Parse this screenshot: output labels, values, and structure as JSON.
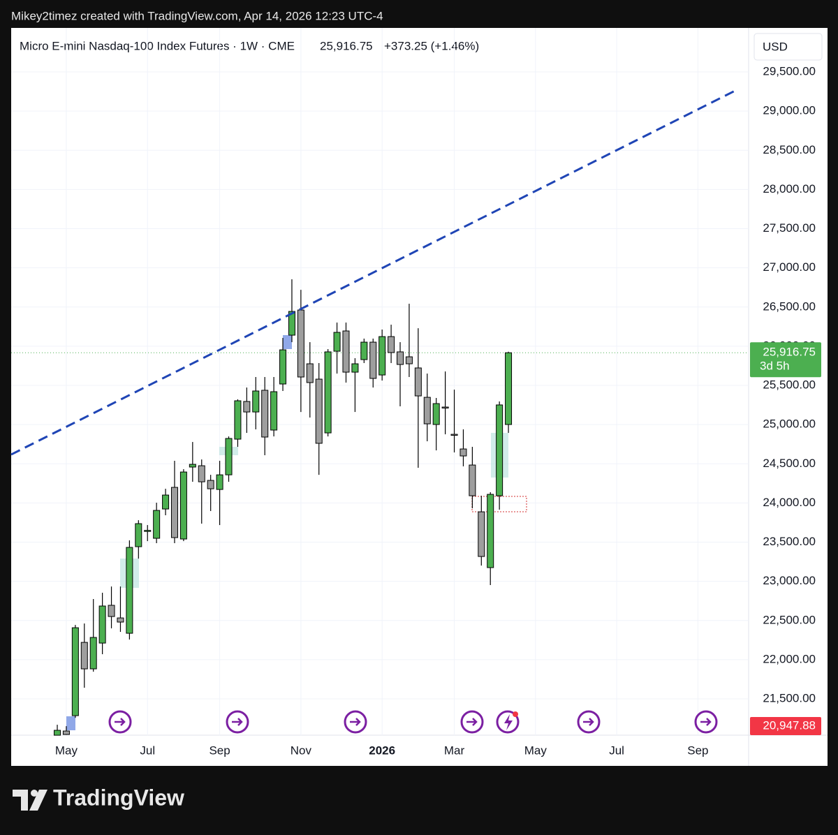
{
  "header": {
    "credit": "Mikey2timez created with TradingView.com, Apr 14, 2026 12:23 UTC-4",
    "brand": "TradingView"
  },
  "chart_data": {
    "type": "candlestick",
    "title": "Micro E-mini Nasdaq-100 Index Futures · 1W · CME",
    "price_text": "25,916.75",
    "change_text": "+373.25 (+1.46%)",
    "currency": "USD",
    "x": [
      0,
      1,
      2,
      3,
      4,
      5,
      6,
      7,
      8,
      9,
      10,
      11,
      12,
      13,
      14,
      15,
      16,
      17,
      18,
      19,
      20,
      21,
      22,
      23,
      24,
      25,
      26,
      27,
      28,
      29,
      30,
      31,
      32,
      33,
      34,
      35,
      36,
      37,
      38,
      39,
      40,
      41,
      42,
      43,
      44,
      45,
      46,
      47,
      48,
      49,
      50
    ],
    "open": [
      21036,
      21090,
      21286,
      22221,
      21883,
      22212,
      22694,
      22533,
      22337,
      23442,
      23647,
      23549,
      23923,
      24199,
      23540,
      24458,
      24475,
      24288,
      24172,
      24359,
      24814,
      25295,
      25161,
      25438,
      24930,
      25518,
      26141,
      26462,
      25776,
      25580,
      24894,
      25936,
      26195,
      25669,
      25829,
      26052,
      25633,
      26123,
      25928,
      25865,
      25723,
      25348,
      25001,
      25224,
      24876,
      24689,
      24484,
      23887,
      23175,
      24092,
      25001
    ],
    "high": [
      21170,
      21152,
      22444,
      22462,
      22774,
      22854,
      22934,
      22934,
      23522,
      23780,
      23718,
      24003,
      24181,
      24538,
      24431,
      24778,
      24555,
      24359,
      24538,
      24849,
      25322,
      25473,
      25607,
      25607,
      25607,
      26106,
      26854,
      26720,
      26052,
      25785,
      25963,
      26302,
      26302,
      25847,
      26097,
      26097,
      26213,
      26275,
      26052,
      26542,
      26230,
      25651,
      25340,
      25678,
      25446,
      24939,
      24716,
      24092,
      24137,
      25295,
      25930
    ],
    "low": [
      21036,
      21040,
      21259,
      21642,
      21847,
      22070,
      22400,
      22355,
      22257,
      23290,
      23513,
      23487,
      23843,
      23487,
      23513,
      24270,
      23736,
      23897,
      23718,
      24270,
      24716,
      24894,
      24939,
      24609,
      24849,
      25429,
      26052,
      25161,
      25090,
      24359,
      24849,
      25651,
      25536,
      25161,
      25785,
      25473,
      25562,
      25785,
      25233,
      25607,
      24449,
      24787,
      24671,
      24876,
      24645,
      24467,
      23932,
      23201,
      22952,
      23914,
      24894
    ],
    "close": [
      21099,
      21046,
      22408,
      21883,
      22284,
      22685,
      22551,
      22480,
      23433,
      23736,
      23650,
      23905,
      24101,
      23558,
      24395,
      24493,
      24270,
      24181,
      24359,
      24823,
      25304,
      25161,
      25429,
      24841,
      25420,
      25954,
      26444,
      25607,
      25536,
      24761,
      25928,
      26177,
      25669,
      25776,
      26052,
      25589,
      26123,
      25919,
      25767,
      25776,
      25366,
      25010,
      25268,
      25220,
      24870,
      24600,
      24092,
      23317,
      24110,
      25251,
      25916.75
    ],
    "up_color": "#4caf50",
    "down_color": "#9e9e9e",
    "xlim": [
      -5.11,
      76.62
    ],
    "xticks": [
      {
        "value": 1,
        "label": "May"
      },
      {
        "value": 10,
        "label": "Jul"
      },
      {
        "value": 18,
        "label": "Sep"
      },
      {
        "value": 27,
        "label": "Nov"
      },
      {
        "value": 36,
        "label": "2026"
      },
      {
        "value": 44,
        "label": "Mar"
      },
      {
        "value": 53,
        "label": "May"
      },
      {
        "value": 62,
        "label": "Jul"
      },
      {
        "value": 71,
        "label": "Sep"
      }
    ],
    "ylim": [
      21037,
      29616
    ],
    "yticks": [
      {
        "value": 21500,
        "label": "21,500.00"
      },
      {
        "value": 22000,
        "label": "22,000.00"
      },
      {
        "value": 22500,
        "label": "22,500.00"
      },
      {
        "value": 23000,
        "label": "23,000.00"
      },
      {
        "value": 23500,
        "label": "23,500.00"
      },
      {
        "value": 24000,
        "label": "24,000.00"
      },
      {
        "value": 24500,
        "label": "24,500.00"
      },
      {
        "value": 25000,
        "label": "25,000.00"
      },
      {
        "value": 25500,
        "label": "25,500.00"
      },
      {
        "value": 26000,
        "label": "26,000.00"
      },
      {
        "value": 26500,
        "label": "26,500.00"
      },
      {
        "value": 27000,
        "label": "27,000.00"
      },
      {
        "value": 27500,
        "label": "27,500.00"
      },
      {
        "value": 28000,
        "label": "28,000.00"
      },
      {
        "value": 28500,
        "label": "28,500.00"
      },
      {
        "value": 29000,
        "label": "29,000.00"
      },
      {
        "value": 29500,
        "label": "29,500.00"
      }
    ],
    "grid": true,
    "trendline": {
      "x": [
        -5.11,
        75.1
      ],
      "y": [
        24618,
        29259
      ],
      "color": "#1f45b5"
    },
    "last_price": {
      "value": 25916.75,
      "label": "25,916.75",
      "countdown": "3d 5h",
      "color": "#4caf50"
    },
    "low_marker": {
      "value": 20947.88,
      "label": "20,947.88",
      "color": "#f23645"
    }
  }
}
